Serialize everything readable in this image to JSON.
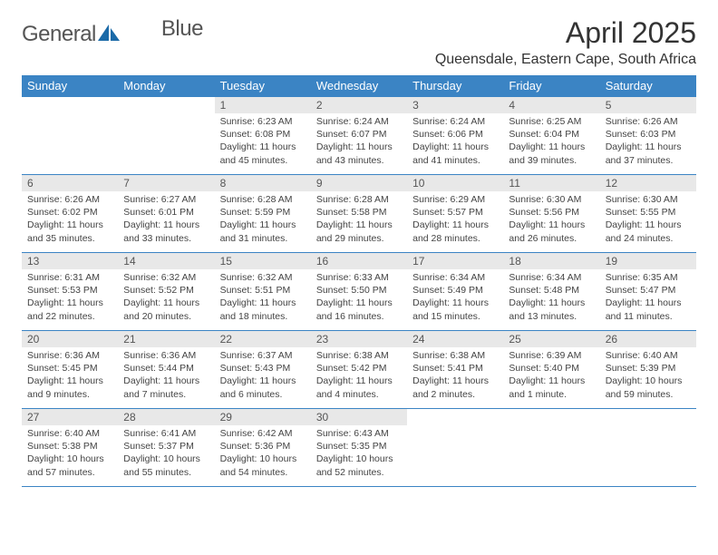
{
  "colors": {
    "header_bg": "#3b84c4",
    "header_text": "#ffffff",
    "daynum_bg": "#e8e8e8",
    "daynum_text": "#555555",
    "body_text": "#444444",
    "border": "#3b84c4",
    "page_bg": "#ffffff",
    "logo_gray": "#5a6a72",
    "logo_blue": "#1b6aa8"
  },
  "logo": {
    "text1": "General",
    "text2": "Blue"
  },
  "title": "April 2025",
  "location": "Queensdale, Eastern Cape, South Africa",
  "day_headers": [
    "Sunday",
    "Monday",
    "Tuesday",
    "Wednesday",
    "Thursday",
    "Friday",
    "Saturday"
  ],
  "weeks": [
    [
      {
        "empty": true
      },
      {
        "empty": true
      },
      {
        "n": "1",
        "sr": "Sunrise: 6:23 AM",
        "ss": "Sunset: 6:08 PM",
        "dl": "Daylight: 11 hours and 45 minutes."
      },
      {
        "n": "2",
        "sr": "Sunrise: 6:24 AM",
        "ss": "Sunset: 6:07 PM",
        "dl": "Daylight: 11 hours and 43 minutes."
      },
      {
        "n": "3",
        "sr": "Sunrise: 6:24 AM",
        "ss": "Sunset: 6:06 PM",
        "dl": "Daylight: 11 hours and 41 minutes."
      },
      {
        "n": "4",
        "sr": "Sunrise: 6:25 AM",
        "ss": "Sunset: 6:04 PM",
        "dl": "Daylight: 11 hours and 39 minutes."
      },
      {
        "n": "5",
        "sr": "Sunrise: 6:26 AM",
        "ss": "Sunset: 6:03 PM",
        "dl": "Daylight: 11 hours and 37 minutes."
      }
    ],
    [
      {
        "n": "6",
        "sr": "Sunrise: 6:26 AM",
        "ss": "Sunset: 6:02 PM",
        "dl": "Daylight: 11 hours and 35 minutes."
      },
      {
        "n": "7",
        "sr": "Sunrise: 6:27 AM",
        "ss": "Sunset: 6:01 PM",
        "dl": "Daylight: 11 hours and 33 minutes."
      },
      {
        "n": "8",
        "sr": "Sunrise: 6:28 AM",
        "ss": "Sunset: 5:59 PM",
        "dl": "Daylight: 11 hours and 31 minutes."
      },
      {
        "n": "9",
        "sr": "Sunrise: 6:28 AM",
        "ss": "Sunset: 5:58 PM",
        "dl": "Daylight: 11 hours and 29 minutes."
      },
      {
        "n": "10",
        "sr": "Sunrise: 6:29 AM",
        "ss": "Sunset: 5:57 PM",
        "dl": "Daylight: 11 hours and 28 minutes."
      },
      {
        "n": "11",
        "sr": "Sunrise: 6:30 AM",
        "ss": "Sunset: 5:56 PM",
        "dl": "Daylight: 11 hours and 26 minutes."
      },
      {
        "n": "12",
        "sr": "Sunrise: 6:30 AM",
        "ss": "Sunset: 5:55 PM",
        "dl": "Daylight: 11 hours and 24 minutes."
      }
    ],
    [
      {
        "n": "13",
        "sr": "Sunrise: 6:31 AM",
        "ss": "Sunset: 5:53 PM",
        "dl": "Daylight: 11 hours and 22 minutes."
      },
      {
        "n": "14",
        "sr": "Sunrise: 6:32 AM",
        "ss": "Sunset: 5:52 PM",
        "dl": "Daylight: 11 hours and 20 minutes."
      },
      {
        "n": "15",
        "sr": "Sunrise: 6:32 AM",
        "ss": "Sunset: 5:51 PM",
        "dl": "Daylight: 11 hours and 18 minutes."
      },
      {
        "n": "16",
        "sr": "Sunrise: 6:33 AM",
        "ss": "Sunset: 5:50 PM",
        "dl": "Daylight: 11 hours and 16 minutes."
      },
      {
        "n": "17",
        "sr": "Sunrise: 6:34 AM",
        "ss": "Sunset: 5:49 PM",
        "dl": "Daylight: 11 hours and 15 minutes."
      },
      {
        "n": "18",
        "sr": "Sunrise: 6:34 AM",
        "ss": "Sunset: 5:48 PM",
        "dl": "Daylight: 11 hours and 13 minutes."
      },
      {
        "n": "19",
        "sr": "Sunrise: 6:35 AM",
        "ss": "Sunset: 5:47 PM",
        "dl": "Daylight: 11 hours and 11 minutes."
      }
    ],
    [
      {
        "n": "20",
        "sr": "Sunrise: 6:36 AM",
        "ss": "Sunset: 5:45 PM",
        "dl": "Daylight: 11 hours and 9 minutes."
      },
      {
        "n": "21",
        "sr": "Sunrise: 6:36 AM",
        "ss": "Sunset: 5:44 PM",
        "dl": "Daylight: 11 hours and 7 minutes."
      },
      {
        "n": "22",
        "sr": "Sunrise: 6:37 AM",
        "ss": "Sunset: 5:43 PM",
        "dl": "Daylight: 11 hours and 6 minutes."
      },
      {
        "n": "23",
        "sr": "Sunrise: 6:38 AM",
        "ss": "Sunset: 5:42 PM",
        "dl": "Daylight: 11 hours and 4 minutes."
      },
      {
        "n": "24",
        "sr": "Sunrise: 6:38 AM",
        "ss": "Sunset: 5:41 PM",
        "dl": "Daylight: 11 hours and 2 minutes."
      },
      {
        "n": "25",
        "sr": "Sunrise: 6:39 AM",
        "ss": "Sunset: 5:40 PM",
        "dl": "Daylight: 11 hours and 1 minute."
      },
      {
        "n": "26",
        "sr": "Sunrise: 6:40 AM",
        "ss": "Sunset: 5:39 PM",
        "dl": "Daylight: 10 hours and 59 minutes."
      }
    ],
    [
      {
        "n": "27",
        "sr": "Sunrise: 6:40 AM",
        "ss": "Sunset: 5:38 PM",
        "dl": "Daylight: 10 hours and 57 minutes."
      },
      {
        "n": "28",
        "sr": "Sunrise: 6:41 AM",
        "ss": "Sunset: 5:37 PM",
        "dl": "Daylight: 10 hours and 55 minutes."
      },
      {
        "n": "29",
        "sr": "Sunrise: 6:42 AM",
        "ss": "Sunset: 5:36 PM",
        "dl": "Daylight: 10 hours and 54 minutes."
      },
      {
        "n": "30",
        "sr": "Sunrise: 6:43 AM",
        "ss": "Sunset: 5:35 PM",
        "dl": "Daylight: 10 hours and 52 minutes."
      },
      {
        "empty": true
      },
      {
        "empty": true
      },
      {
        "empty": true
      }
    ]
  ]
}
